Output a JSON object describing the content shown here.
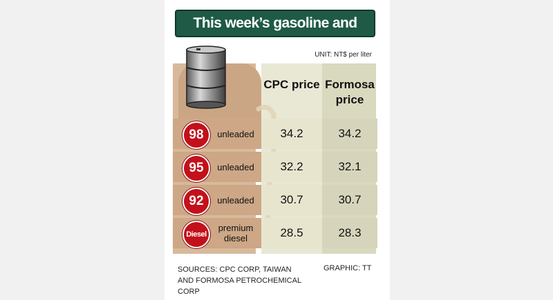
{
  "title": "This week’s gasoline and diesel prices",
  "unit": "UNIT: NT$ per liter",
  "sources": "SOURCES: CPC CORP, TAIWAN AND FORMOSA PETROCHEMICAL CORP",
  "credit": "GRAPHIC: TT",
  "colors": {
    "title_bg": "#1e5a45",
    "badge": "#c3111a",
    "left_band": "#cda786",
    "cpc_col": "#e8e5cf",
    "formosa_col": "#d6d5bc"
  },
  "chart_data": {
    "type": "table",
    "columns": [
      "CPC price",
      "Formosa price"
    ],
    "rows": [
      {
        "badge": "98",
        "fuel": "unleaded",
        "values": [
          "34.2",
          "34.2"
        ]
      },
      {
        "badge": "95",
        "fuel": "unleaded",
        "values": [
          "32.2",
          "32.1"
        ]
      },
      {
        "badge": "92",
        "fuel": "unleaded",
        "values": [
          "30.7",
          "30.7"
        ]
      },
      {
        "badge": "Diesel",
        "fuel": "premium diesel",
        "values": [
          "28.5",
          "28.3"
        ]
      }
    ]
  }
}
